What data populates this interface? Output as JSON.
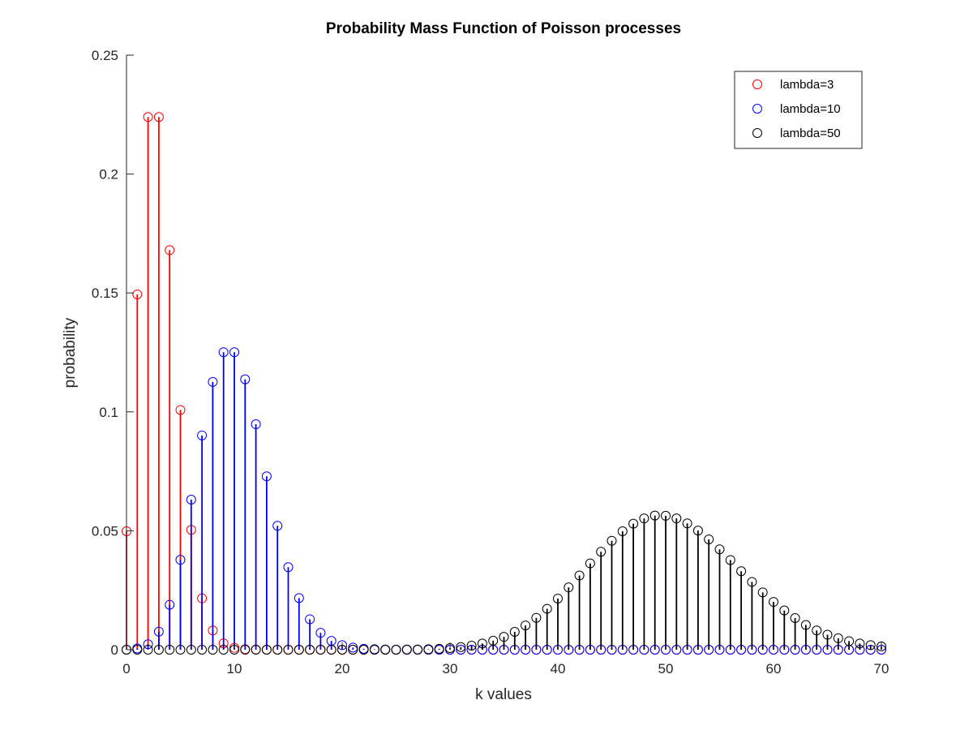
{
  "chart_data": {
    "type": "stem",
    "title": "Probability Mass Function of Poisson processes",
    "xlabel": "k values",
    "ylabel": "probability",
    "xlim": [
      0,
      70
    ],
    "ylim": [
      0,
      0.25
    ],
    "x": [
      0,
      1,
      2,
      3,
      4,
      5,
      6,
      7,
      8,
      9,
      10,
      11,
      12,
      13,
      14,
      15,
      16,
      17,
      18,
      19,
      20,
      21,
      22,
      23,
      24,
      25,
      26,
      27,
      28,
      29,
      30,
      31,
      32,
      33,
      34,
      35,
      36,
      37,
      38,
      39,
      40,
      41,
      42,
      43,
      44,
      45,
      46,
      47,
      48,
      49,
      50,
      51,
      52,
      53,
      54,
      55,
      56,
      57,
      58,
      59,
      60,
      61,
      62,
      63,
      64,
      65,
      66,
      67,
      68,
      69,
      70
    ],
    "xticks": [
      0,
      10,
      20,
      30,
      40,
      50,
      60,
      70
    ],
    "xtick_labels": [
      "0",
      "10",
      "20",
      "30",
      "40",
      "50",
      "60",
      "70"
    ],
    "yticks": [
      0,
      0.05,
      0.1,
      0.15,
      0.2,
      0.25
    ],
    "ytick_labels": [
      "0",
      "0.05",
      "0.1",
      "0.15",
      "0.2",
      "0.25"
    ],
    "grid": false,
    "legend_position": "top-right",
    "series": [
      {
        "name": "lambda=3",
        "color": "#ff0000",
        "values": [
          0.0498,
          0.1494,
          0.224,
          0.224,
          0.168,
          0.1008,
          0.0504,
          0.0216,
          0.0081,
          0.0027,
          0.0008,
          0.0002,
          0.0001,
          0,
          0,
          0,
          0,
          0,
          0,
          0,
          0,
          0,
          0,
          0,
          0,
          0,
          0,
          0,
          0,
          0,
          0,
          0,
          0,
          0,
          0,
          0,
          0,
          0,
          0,
          0,
          0,
          0,
          0,
          0,
          0,
          0,
          0,
          0,
          0,
          0,
          0,
          0,
          0,
          0,
          0,
          0,
          0,
          0,
          0,
          0,
          0,
          0,
          0,
          0,
          0,
          0,
          0,
          0,
          0,
          0,
          0
        ]
      },
      {
        "name": "lambda=10",
        "color": "#0000ff",
        "values": [
          0.0,
          0.0005,
          0.0023,
          0.0076,
          0.0189,
          0.0378,
          0.0631,
          0.0901,
          0.1126,
          0.1251,
          0.1251,
          0.1137,
          0.0948,
          0.0729,
          0.0521,
          0.0347,
          0.0217,
          0.0128,
          0.0071,
          0.0037,
          0.0019,
          0.0009,
          0.0004,
          0.0002,
          0.0001,
          0,
          0,
          0,
          0,
          0,
          0,
          0,
          0,
          0,
          0,
          0,
          0,
          0,
          0,
          0,
          0,
          0,
          0,
          0,
          0,
          0,
          0,
          0,
          0,
          0,
          0,
          0,
          0,
          0,
          0,
          0,
          0,
          0,
          0,
          0,
          0,
          0,
          0,
          0,
          0,
          0,
          0,
          0,
          0,
          0,
          0
        ]
      },
      {
        "name": "lambda=50",
        "color": "#000000",
        "values": [
          0,
          0,
          0,
          0,
          0,
          0,
          0,
          0,
          0,
          0,
          0,
          0,
          0,
          0,
          0,
          0,
          0,
          0,
          0,
          0,
          0.0,
          0.0,
          0.0,
          0.0,
          0.0,
          0.0,
          0.0001,
          0.0001,
          0.0002,
          0.0004,
          0.0007,
          0.0011,
          0.0017,
          0.0026,
          0.0038,
          0.0054,
          0.0075,
          0.0102,
          0.0134,
          0.0172,
          0.0215,
          0.0262,
          0.0312,
          0.0363,
          0.0412,
          0.0458,
          0.0498,
          0.053,
          0.0552,
          0.0564,
          0.0563,
          0.0552,
          0.0531,
          0.0501,
          0.0464,
          0.0422,
          0.0377,
          0.033,
          0.0285,
          0.0241,
          0.0201,
          0.0165,
          0.0133,
          0.0104,
          0.0081,
          0.0063,
          0.0048,
          0.0036,
          0.0026,
          0.0019,
          0.0014
        ]
      }
    ]
  }
}
